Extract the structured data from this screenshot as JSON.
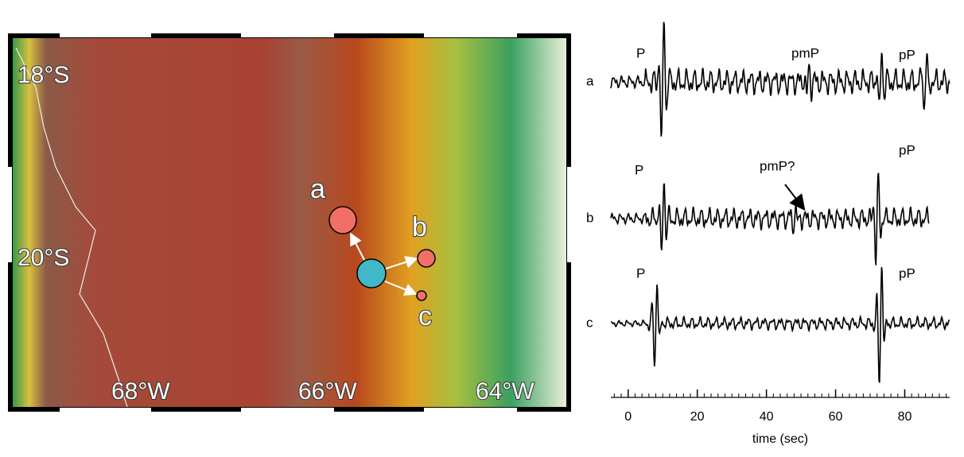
{
  "map": {
    "latitude_labels": [
      "18°S",
      "20°S"
    ],
    "longitude_labels": [
      "68°W",
      "66°W",
      "64°W"
    ],
    "station_labels": [
      "a",
      "b",
      "c"
    ]
  },
  "seismograms": {
    "traces": [
      {
        "label": "a",
        "phases": [
          "P",
          "pmP",
          "pP"
        ]
      },
      {
        "label": "b",
        "phases": [
          "P",
          "pmP?",
          "pP"
        ]
      },
      {
        "label": "c",
        "phases": [
          "P",
          "pP"
        ]
      }
    ],
    "axis": {
      "label": "time (sec)",
      "ticks": [
        0,
        20,
        40,
        60,
        80
      ],
      "lim": [
        -5,
        93
      ]
    }
  }
}
